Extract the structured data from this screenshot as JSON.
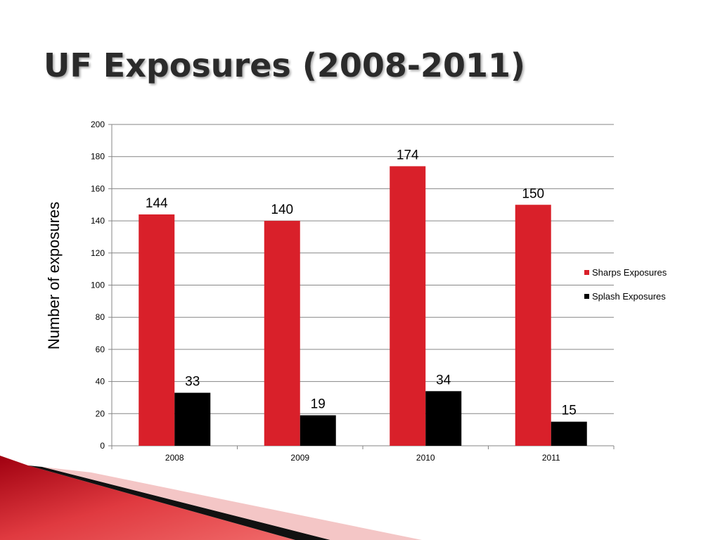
{
  "slide": {
    "title": "UF Exposures (2008-2011)"
  },
  "colors": {
    "sharps": "#d9202a",
    "splash": "#000000",
    "grid": "#868686",
    "accent_red": "#c8101a"
  },
  "chart_data": {
    "type": "bar",
    "title": "",
    "xlabel": "",
    "ylabel": "Number of exposures",
    "categories": [
      "2008",
      "2009",
      "2010",
      "2011"
    ],
    "series": [
      {
        "name": "Sharps Exposures",
        "values": [
          144,
          140,
          174,
          150
        ]
      },
      {
        "name": "Splash Exposures",
        "values": [
          33,
          19,
          34,
          15
        ]
      }
    ],
    "ylim": [
      0,
      200
    ],
    "yticks": [
      0,
      20,
      40,
      60,
      80,
      100,
      120,
      140,
      160,
      180,
      200
    ],
    "grid": true,
    "legend": "right",
    "data_labels": true
  }
}
